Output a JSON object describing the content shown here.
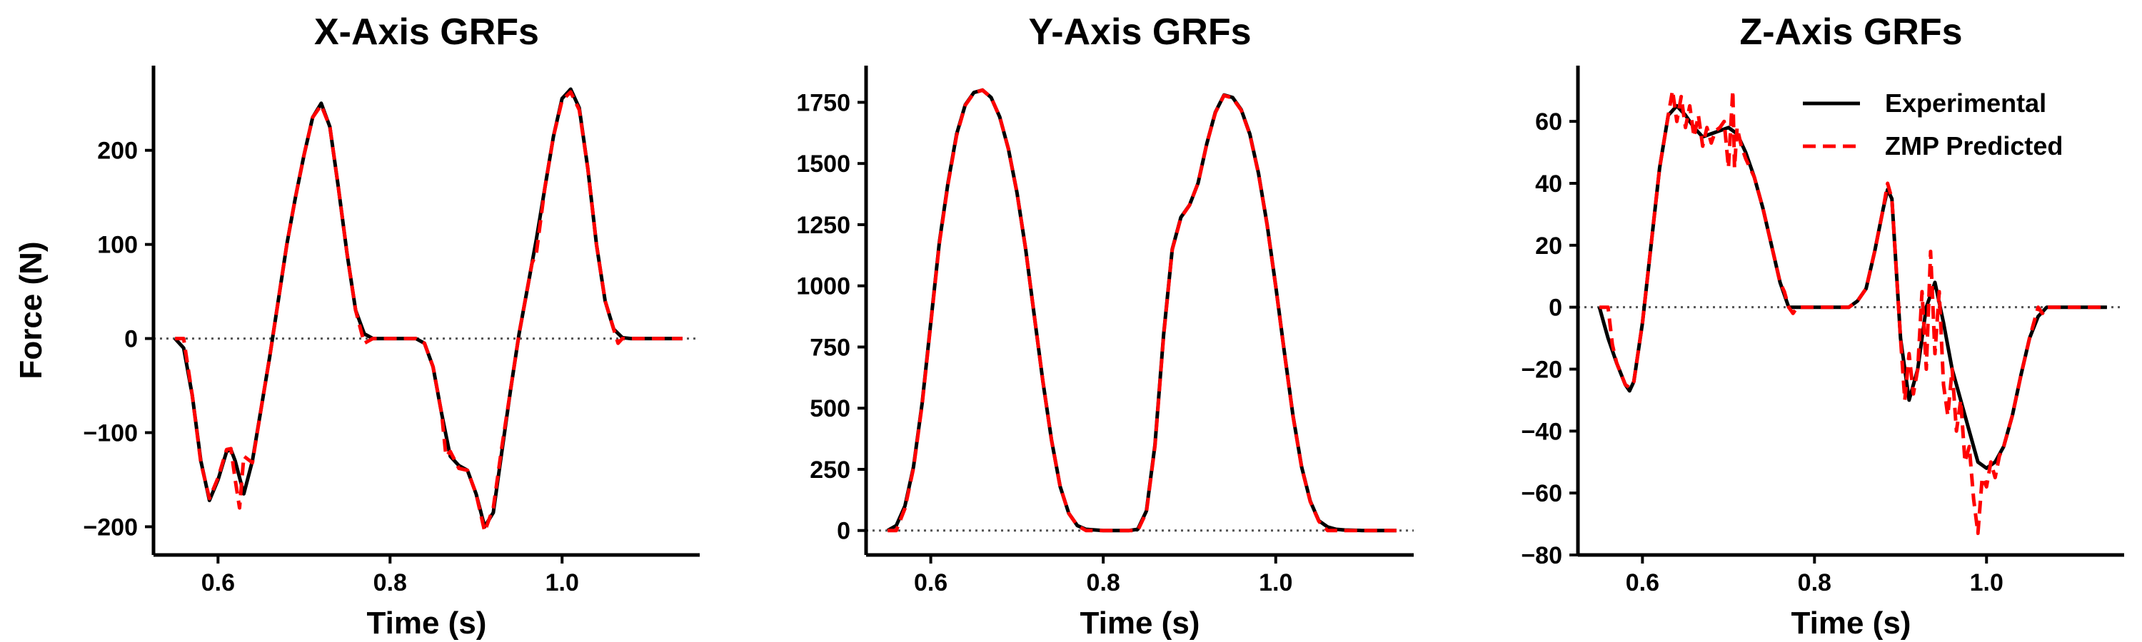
{
  "figure": {
    "colors": {
      "experimental": "#000000",
      "predicted": "#ff0000",
      "zero_line": "#555555"
    }
  },
  "chart_data": [
    {
      "type": "line",
      "title": "X-Axis GRFs",
      "xlabel": "Time (s)",
      "ylabel": "Force (N)",
      "xlim": [
        0.525,
        1.16
      ],
      "ylim": [
        -230,
        290
      ],
      "xticks": [
        0.6,
        0.8,
        1.0
      ],
      "xtick_labels": [
        "0.6",
        "0.8",
        "1.0"
      ],
      "yticks": [
        -200,
        -100,
        0,
        100,
        200
      ],
      "ytick_labels": [
        "−200",
        "−100",
        "0",
        "100",
        "200"
      ],
      "zero_line": true,
      "grid": false,
      "legend": null,
      "series": [
        {
          "name": "Experimental",
          "style": "solid",
          "x": [
            0.55,
            0.56,
            0.57,
            0.58,
            0.59,
            0.6,
            0.61,
            0.615,
            0.62,
            0.63,
            0.64,
            0.65,
            0.66,
            0.67,
            0.68,
            0.69,
            0.7,
            0.71,
            0.72,
            0.73,
            0.74,
            0.75,
            0.76,
            0.77,
            0.78,
            0.8,
            0.82,
            0.83,
            0.84,
            0.85,
            0.86,
            0.87,
            0.88,
            0.89,
            0.9,
            0.91,
            0.92,
            0.93,
            0.94,
            0.95,
            0.96,
            0.97,
            0.98,
            0.99,
            1.0,
            1.01,
            1.02,
            1.03,
            1.04,
            1.05,
            1.06,
            1.07,
            1.08,
            1.1,
            1.12,
            1.14
          ],
          "y": [
            0,
            -10,
            -60,
            -130,
            -172,
            -150,
            -120,
            -118,
            -130,
            -165,
            -130,
            -75,
            -20,
            40,
            100,
            150,
            195,
            235,
            250,
            225,
            160,
            90,
            30,
            5,
            0,
            0,
            0,
            0,
            -5,
            -30,
            -80,
            -125,
            -135,
            -140,
            -165,
            -200,
            -185,
            -120,
            -55,
            5,
            55,
            105,
            160,
            215,
            255,
            265,
            245,
            180,
            100,
            40,
            10,
            1,
            0,
            0,
            0,
            0
          ]
        },
        {
          "name": "ZMP Predicted",
          "style": "dashed",
          "x": [
            0.55,
            0.56,
            0.57,
            0.58,
            0.59,
            0.6,
            0.61,
            0.615,
            0.62,
            0.625,
            0.63,
            0.64,
            0.65,
            0.66,
            0.67,
            0.68,
            0.69,
            0.7,
            0.71,
            0.72,
            0.73,
            0.74,
            0.75,
            0.76,
            0.77,
            0.78,
            0.8,
            0.82,
            0.83,
            0.84,
            0.85,
            0.86,
            0.865,
            0.87,
            0.88,
            0.89,
            0.9,
            0.91,
            0.92,
            0.93,
            0.94,
            0.95,
            0.96,
            0.965,
            0.97,
            0.98,
            0.99,
            1.0,
            1.01,
            1.02,
            1.03,
            1.04,
            1.05,
            1.06,
            1.065,
            1.07,
            1.08,
            1.1,
            1.12,
            1.14
          ],
          "y": [
            0,
            0,
            -60,
            -132,
            -170,
            -148,
            -118,
            -117,
            -150,
            -180,
            -125,
            -132,
            -75,
            -20,
            40,
            100,
            150,
            195,
            235,
            248,
            225,
            160,
            90,
            30,
            -5,
            0,
            0,
            0,
            0,
            -5,
            -30,
            -80,
            -125,
            -120,
            -138,
            -140,
            -165,
            -205,
            -180,
            -115,
            -55,
            5,
            55,
            80,
            90,
            160,
            215,
            253,
            262,
            243,
            180,
            100,
            40,
            10,
            -5,
            0,
            0,
            0,
            0,
            0
          ]
        }
      ]
    },
    {
      "type": "line",
      "title": "Y-Axis GRFs",
      "xlabel": "Time (s)",
      "ylabel": "",
      "xlim": [
        0.525,
        1.16
      ],
      "ylim": [
        -100,
        1900
      ],
      "xticks": [
        0.6,
        0.8,
        1.0
      ],
      "xtick_labels": [
        "0.6",
        "0.8",
        "1.0"
      ],
      "yticks": [
        0,
        250,
        500,
        750,
        1000,
        1250,
        1500,
        1750
      ],
      "ytick_labels": [
        "0",
        "250",
        "500",
        "750",
        "1000",
        "1250",
        "1500",
        "1750"
      ],
      "zero_line": true,
      "grid": false,
      "legend": null,
      "series": [
        {
          "name": "Experimental",
          "style": "solid",
          "x": [
            0.55,
            0.56,
            0.57,
            0.58,
            0.59,
            0.6,
            0.61,
            0.62,
            0.63,
            0.64,
            0.65,
            0.66,
            0.67,
            0.68,
            0.69,
            0.7,
            0.71,
            0.72,
            0.73,
            0.74,
            0.75,
            0.76,
            0.77,
            0.78,
            0.8,
            0.82,
            0.83,
            0.84,
            0.85,
            0.86,
            0.87,
            0.88,
            0.89,
            0.9,
            0.91,
            0.92,
            0.93,
            0.94,
            0.95,
            0.96,
            0.97,
            0.98,
            0.99,
            1.0,
            1.01,
            1.02,
            1.03,
            1.04,
            1.05,
            1.06,
            1.07,
            1.08,
            1.1,
            1.12,
            1.14
          ],
          "y": [
            0,
            20,
            100,
            260,
            520,
            850,
            1180,
            1420,
            1620,
            1740,
            1790,
            1800,
            1770,
            1690,
            1560,
            1380,
            1150,
            880,
            610,
            370,
            180,
            70,
            20,
            5,
            0,
            0,
            0,
            5,
            80,
            350,
            800,
            1150,
            1280,
            1330,
            1420,
            1580,
            1710,
            1780,
            1770,
            1720,
            1620,
            1460,
            1250,
            1000,
            730,
            470,
            260,
            120,
            40,
            15,
            5,
            2,
            0,
            0,
            0
          ]
        },
        {
          "name": "ZMP Predicted",
          "style": "dashed",
          "x": [
            0.55,
            0.56,
            0.57,
            0.58,
            0.59,
            0.6,
            0.61,
            0.62,
            0.63,
            0.64,
            0.65,
            0.66,
            0.67,
            0.68,
            0.69,
            0.7,
            0.71,
            0.72,
            0.73,
            0.74,
            0.75,
            0.76,
            0.77,
            0.78,
            0.8,
            0.82,
            0.83,
            0.84,
            0.85,
            0.86,
            0.87,
            0.88,
            0.89,
            0.9,
            0.91,
            0.92,
            0.93,
            0.94,
            0.95,
            0.96,
            0.97,
            0.98,
            0.99,
            1.0,
            1.01,
            1.02,
            1.03,
            1.04,
            1.05,
            1.06,
            1.07,
            1.08,
            1.1,
            1.12,
            1.14
          ],
          "y": [
            0,
            0,
            90,
            255,
            515,
            845,
            1175,
            1415,
            1615,
            1738,
            1788,
            1800,
            1770,
            1690,
            1560,
            1380,
            1150,
            880,
            610,
            370,
            180,
            70,
            20,
            0,
            0,
            0,
            0,
            0,
            75,
            345,
            795,
            1148,
            1278,
            1330,
            1420,
            1580,
            1708,
            1778,
            1768,
            1718,
            1618,
            1458,
            1248,
            998,
            728,
            468,
            258,
            118,
            38,
            0,
            0,
            0,
            0,
            0,
            0
          ]
        }
      ]
    },
    {
      "type": "line",
      "title": "Z-Axis GRFs",
      "xlabel": "Time (s)",
      "ylabel": "",
      "xlim": [
        0.525,
        1.16
      ],
      "ylim": [
        -80,
        78
      ],
      "xticks": [
        0.6,
        0.8,
        1.0
      ],
      "xtick_labels": [
        "0.6",
        "0.8",
        "1.0"
      ],
      "yticks": [
        -80,
        -60,
        -40,
        -20,
        0,
        20,
        40,
        60
      ],
      "ytick_labels": [
        "−80",
        "−60",
        "−40",
        "−20",
        "0",
        "20",
        "40",
        "60"
      ],
      "zero_line": true,
      "grid": false,
      "legend": "top-right",
      "legend_entries": [
        "Experimental",
        "ZMP Predicted"
      ],
      "series": [
        {
          "name": "Experimental",
          "style": "solid",
          "x": [
            0.55,
            0.555,
            0.56,
            0.57,
            0.58,
            0.585,
            0.59,
            0.6,
            0.61,
            0.62,
            0.63,
            0.64,
            0.65,
            0.66,
            0.67,
            0.68,
            0.69,
            0.7,
            0.71,
            0.72,
            0.73,
            0.74,
            0.75,
            0.76,
            0.77,
            0.78,
            0.8,
            0.82,
            0.84,
            0.85,
            0.86,
            0.87,
            0.88,
            0.885,
            0.89,
            0.9,
            0.91,
            0.92,
            0.93,
            0.94,
            0.95,
            0.96,
            0.97,
            0.98,
            0.99,
            1.0,
            1.01,
            1.02,
            1.03,
            1.04,
            1.05,
            1.06,
            1.07,
            1.08,
            1.1,
            1.12,
            1.14
          ],
          "y": [
            0,
            -5,
            -10,
            -18,
            -25,
            -27,
            -24,
            -5,
            20,
            45,
            62,
            65,
            62,
            58,
            55,
            56,
            57,
            58,
            56,
            50,
            42,
            32,
            20,
            8,
            0,
            0,
            0,
            0,
            0,
            2,
            6,
            18,
            32,
            38,
            35,
            -10,
            -30,
            -20,
            0,
            8,
            -5,
            -20,
            -30,
            -40,
            -50,
            -52,
            -50,
            -45,
            -35,
            -22,
            -10,
            -3,
            0,
            0,
            0,
            0,
            0
          ]
        },
        {
          "name": "ZMP Predicted",
          "style": "dashed",
          "x": [
            0.55,
            0.56,
            0.565,
            0.57,
            0.58,
            0.585,
            0.59,
            0.6,
            0.61,
            0.62,
            0.63,
            0.635,
            0.64,
            0.645,
            0.65,
            0.655,
            0.66,
            0.665,
            0.67,
            0.675,
            0.68,
            0.685,
            0.69,
            0.695,
            0.7,
            0.702,
            0.705,
            0.707,
            0.71,
            0.715,
            0.72,
            0.73,
            0.74,
            0.75,
            0.76,
            0.765,
            0.77,
            0.775,
            0.78,
            0.8,
            0.82,
            0.84,
            0.85,
            0.86,
            0.87,
            0.88,
            0.885,
            0.89,
            0.9,
            0.905,
            0.91,
            0.915,
            0.92,
            0.925,
            0.93,
            0.935,
            0.94,
            0.945,
            0.95,
            0.955,
            0.96,
            0.965,
            0.97,
            0.975,
            0.98,
            0.985,
            0.99,
            0.995,
            1.0,
            1.005,
            1.01,
            1.015,
            1.02,
            1.03,
            1.04,
            1.05,
            1.06,
            1.065,
            1.07,
            1.08,
            1.1,
            1.12,
            1.14
          ],
          "y": [
            0,
            0,
            -12,
            -18,
            -25,
            -26,
            -24,
            -5,
            20,
            45,
            62,
            70,
            60,
            68,
            58,
            65,
            55,
            62,
            52,
            58,
            53,
            57,
            58,
            60,
            45,
            55,
            70,
            45,
            58,
            52,
            48,
            42,
            32,
            20,
            8,
            5,
            0,
            -2,
            0,
            0,
            0,
            0,
            2,
            6,
            18,
            32,
            40,
            35,
            -10,
            -30,
            -15,
            -28,
            -20,
            5,
            -20,
            18,
            -15,
            5,
            -25,
            -35,
            -20,
            -40,
            -30,
            -50,
            -45,
            -62,
            -73,
            -55,
            -58,
            -50,
            -55,
            -48,
            -45,
            -35,
            -22,
            -10,
            0,
            -2,
            0,
            0,
            0,
            0,
            0
          ]
        }
      ]
    }
  ]
}
